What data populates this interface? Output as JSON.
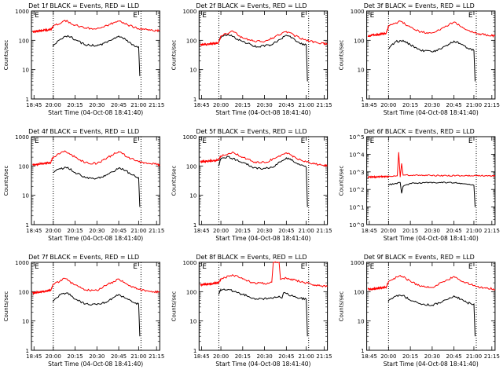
{
  "colors": {
    "events": "#000000",
    "lld": "#ff0000",
    "axes": "#000000",
    "background": "#ffffff"
  },
  "x_tick_labels": [
    "18:45",
    "20:00",
    "20:15",
    "20:30",
    "20:45",
    "21:00",
    "21:15"
  ],
  "xlabel": "Start Time (04-Oct-08 18:41:40)",
  "ylabel": "Counts/sec",
  "marker_label": "E",
  "chart_data": [
    {
      "type": "line",
      "title": "Det 1f BLACK = Events, RED = LLD",
      "ylabel": "Counts/sec",
      "xlabel": "Start Time (04-Oct-08 18:41:40)",
      "y_scale": "log",
      "ylim": [
        1,
        1000
      ],
      "y_tick_labels": [
        "1",
        "10",
        "100",
        "1000"
      ],
      "x_tick_labels": [
        "18:45",
        "20:00",
        "20:15",
        "20:30",
        "20:45",
        "21:00",
        "21:15"
      ],
      "vlines": [
        "20:00",
        "21:02"
      ],
      "series": [
        {
          "name": "Events",
          "color": "#000000",
          "x": [
            "19:59",
            "20:05",
            "20:10",
            "20:15",
            "20:22",
            "20:30",
            "20:37",
            "20:45",
            "20:50",
            "20:55",
            "21:00",
            "21:01"
          ],
          "values": [
            60,
            110,
            145,
            105,
            70,
            65,
            85,
            140,
            110,
            70,
            60,
            6
          ]
        },
        {
          "name": "LLD",
          "color": "#ff0000",
          "x": [
            "18:40",
            "19:50",
            "20:00",
            "20:08",
            "20:15",
            "20:22",
            "20:30",
            "20:37",
            "20:45",
            "20:52",
            "21:00",
            "21:10",
            "21:20"
          ],
          "values": [
            200,
            230,
            300,
            480,
            330,
            260,
            250,
            320,
            450,
            330,
            250,
            220,
            210
          ]
        }
      ]
    },
    {
      "type": "line",
      "title": "Det 2f BLACK = Events, RED = LLD",
      "ylabel": "Counts/sec",
      "xlabel": "Start Time (04-Oct-08 18:41:40)",
      "y_scale": "log",
      "ylim": [
        1,
        1000
      ],
      "y_tick_labels": [
        "1",
        "10",
        "100",
        "1000"
      ],
      "x_tick_labels": [
        "18:45",
        "20:00",
        "20:15",
        "20:30",
        "20:45",
        "21:00",
        "21:15"
      ],
      "vlines": [
        "19:52",
        "21:02"
      ],
      "series": [
        {
          "name": "Events",
          "color": "#000000",
          "x": [
            "19:51",
            "19:58",
            "20:05",
            "20:15",
            "20:25",
            "20:35",
            "20:45",
            "20:50",
            "20:55",
            "21:00",
            "21:01"
          ],
          "values": [
            90,
            120,
            160,
            90,
            60,
            70,
            150,
            120,
            80,
            70,
            4
          ]
        },
        {
          "name": "LLD",
          "color": "#ff0000",
          "x": [
            "18:40",
            "19:50",
            "20:00",
            "20:08",
            "20:15",
            "20:22",
            "20:30",
            "20:37",
            "20:45",
            "20:52",
            "21:00",
            "21:10",
            "21:20"
          ],
          "values": [
            70,
            80,
            140,
            210,
            120,
            95,
            90,
            130,
            200,
            140,
            100,
            80,
            75
          ]
        }
      ]
    },
    {
      "type": "line",
      "title": "Det 3f BLACK = Events, RED = LLD",
      "ylabel": "Counts/sec",
      "xlabel": "Start Time (04-Oct-08 18:41:40)",
      "y_scale": "log",
      "ylim": [
        1,
        1000
      ],
      "y_tick_labels": [
        "1",
        "10",
        "100",
        "1000"
      ],
      "x_tick_labels": [
        "18:45",
        "20:00",
        "20:15",
        "20:30",
        "20:45",
        "21:00",
        "21:15"
      ],
      "vlines": [
        "20:00",
        "21:02"
      ],
      "series": [
        {
          "name": "Events",
          "color": "#000000",
          "x": [
            "19:59",
            "20:05",
            "20:10",
            "20:15",
            "20:22",
            "20:30",
            "20:37",
            "20:45",
            "20:50",
            "20:55",
            "21:00",
            "21:01"
          ],
          "values": [
            50,
            90,
            100,
            70,
            45,
            40,
            55,
            95,
            75,
            55,
            45,
            4
          ]
        },
        {
          "name": "LLD",
          "color": "#ff0000",
          "x": [
            "18:40",
            "19:50",
            "20:00",
            "20:08",
            "20:15",
            "20:22",
            "20:30",
            "20:37",
            "20:45",
            "20:52",
            "21:00",
            "21:10",
            "21:20"
          ],
          "values": [
            140,
            170,
            300,
            450,
            280,
            190,
            180,
            260,
            420,
            260,
            180,
            150,
            140
          ]
        }
      ]
    },
    {
      "type": "line",
      "title": "Det 4f BLACK = Events, RED = LLD",
      "ylabel": "Counts/sec",
      "xlabel": "Start Time (04-Oct-08 18:41:40)",
      "y_scale": "log",
      "ylim": [
        1,
        1000
      ],
      "y_tick_labels": [
        "1",
        "10",
        "100",
        "1000"
      ],
      "x_tick_labels": [
        "18:45",
        "20:00",
        "20:15",
        "20:30",
        "20:45",
        "21:00",
        "21:15"
      ],
      "vlines": [
        "20:00",
        "21:02"
      ],
      "series": [
        {
          "name": "Events",
          "color": "#000000",
          "x": [
            "19:59",
            "20:05",
            "20:10",
            "20:15",
            "20:22",
            "20:30",
            "20:37",
            "20:45",
            "20:50",
            "20:55",
            "21:00",
            "21:01"
          ],
          "values": [
            60,
            80,
            90,
            60,
            40,
            38,
            50,
            85,
            70,
            50,
            40,
            4
          ]
        },
        {
          "name": "LLD",
          "color": "#ff0000",
          "x": [
            "18:40",
            "19:50",
            "20:00",
            "20:08",
            "20:15",
            "20:22",
            "20:30",
            "20:37",
            "20:45",
            "20:52",
            "21:00",
            "21:10",
            "21:20"
          ],
          "values": [
            110,
            130,
            200,
            330,
            200,
            130,
            120,
            190,
            310,
            200,
            140,
            120,
            110
          ]
        }
      ]
    },
    {
      "type": "line",
      "title": "Det 5f BLACK = Events, RED = LLD",
      "ylabel": "Counts/sec",
      "xlabel": "Start Time (04-Oct-08 18:41:40)",
      "y_scale": "log",
      "ylim": [
        1,
        1000
      ],
      "y_tick_labels": [
        "1",
        "10",
        "100",
        "1000"
      ],
      "x_tick_labels": [
        "18:45",
        "20:00",
        "20:15",
        "20:30",
        "20:45",
        "21:00",
        "21:15"
      ],
      "vlines": [
        "19:52",
        "21:02"
      ],
      "series": [
        {
          "name": "Events",
          "color": "#000000",
          "x": [
            "19:51",
            "19:58",
            "20:05",
            "20:15",
            "20:25",
            "20:35",
            "20:45",
            "20:50",
            "20:55",
            "21:00",
            "21:01"
          ],
          "values": [
            100,
            160,
            210,
            130,
            80,
            90,
            190,
            150,
            110,
            90,
            4
          ]
        },
        {
          "name": "LLD",
          "color": "#ff0000",
          "x": [
            "18:40",
            "19:50",
            "20:00",
            "20:08",
            "20:15",
            "20:22",
            "20:30",
            "20:37",
            "20:45",
            "20:52",
            "21:00",
            "21:10",
            "21:20"
          ],
          "values": [
            140,
            160,
            220,
            300,
            200,
            140,
            130,
            180,
            280,
            190,
            140,
            110,
            100
          ]
        }
      ]
    },
    {
      "type": "line",
      "title": "Det 6f BLACK = Events, RED = LLD",
      "ylabel": "Counts/sec",
      "xlabel": "Start Time (04-Oct-08 18:41:40)",
      "y_scale": "log",
      "ylim": [
        1,
        100000
      ],
      "y_tick_labels": [
        "10^0",
        "10^1",
        "10^2",
        "10^3",
        "10^4",
        "10^5"
      ],
      "x_tick_labels": [
        "18:45",
        "20:00",
        "20:15",
        "20:30",
        "20:45",
        "21:00",
        "21:15"
      ],
      "vlines": [
        "20:00",
        "21:02"
      ],
      "series": [
        {
          "name": "Events",
          "color": "#000000",
          "x": [
            "19:59",
            "20:05",
            "20:08",
            "20:09",
            "20:10",
            "20:15",
            "20:25",
            "20:35",
            "20:45",
            "20:55",
            "21:00",
            "21:01"
          ],
          "values": [
            180,
            220,
            250,
            60,
            150,
            220,
            240,
            250,
            240,
            200,
            170,
            10
          ]
        },
        {
          "name": "LLD",
          "color": "#ff0000",
          "x": [
            "18:40",
            "19:55",
            "20:06",
            "20:07",
            "20:08",
            "20:09",
            "20:10",
            "20:20",
            "20:40",
            "21:00",
            "21:20"
          ],
          "values": [
            500,
            550,
            600,
            13000,
            500,
            3000,
            650,
            650,
            600,
            600,
            580
          ]
        }
      ]
    },
    {
      "type": "line",
      "title": "Det 7f BLACK = Events, RED = LLD",
      "ylabel": "Counts/sec",
      "xlabel": "Start Time (04-Oct-08 18:41:40)",
      "y_scale": "log",
      "ylim": [
        1,
        1000
      ],
      "y_tick_labels": [
        "1",
        "10",
        "100",
        "1000"
      ],
      "x_tick_labels": [
        "18:45",
        "20:00",
        "20:15",
        "20:30",
        "20:45",
        "21:00",
        "21:15"
      ],
      "vlines": [
        "20:00",
        "21:02"
      ],
      "series": [
        {
          "name": "Events",
          "color": "#000000",
          "x": [
            "19:59",
            "20:05",
            "20:10",
            "20:15",
            "20:22",
            "20:30",
            "20:37",
            "20:45",
            "20:50",
            "20:55",
            "21:00",
            "21:01"
          ],
          "values": [
            45,
            80,
            90,
            55,
            38,
            36,
            45,
            80,
            60,
            45,
            38,
            3
          ]
        },
        {
          "name": "LLD",
          "color": "#ff0000",
          "x": [
            "18:40",
            "19:50",
            "20:00",
            "20:08",
            "20:15",
            "20:22",
            "20:30",
            "20:37",
            "20:45",
            "20:52",
            "21:00",
            "21:10",
            "21:20"
          ],
          "values": [
            90,
            110,
            180,
            280,
            170,
            115,
            110,
            170,
            270,
            170,
            120,
            100,
            95
          ]
        }
      ]
    },
    {
      "type": "line",
      "title": "Det 8f BLACK = Events, RED = LLD",
      "ylabel": "Counts/sec",
      "xlabel": "Start Time (04-Oct-08 18:41:40)",
      "y_scale": "log",
      "ylim": [
        1,
        1000
      ],
      "y_tick_labels": [
        "1",
        "10",
        "100",
        "1000"
      ],
      "x_tick_labels": [
        "18:45",
        "20:00",
        "20:15",
        "20:30",
        "20:45",
        "21:00",
        "21:15"
      ],
      "vlines": [
        "19:52",
        "21:02"
      ],
      "series": [
        {
          "name": "Events",
          "color": "#000000",
          "x": [
            "19:51",
            "19:58",
            "20:05",
            "20:15",
            "20:25",
            "20:35",
            "20:40",
            "20:42",
            "20:43",
            "20:50",
            "20:55",
            "21:00",
            "21:01"
          ],
          "values": [
            80,
            110,
            120,
            80,
            55,
            60,
            70,
            60,
            90,
            70,
            60,
            55,
            3
          ]
        },
        {
          "name": "LLD",
          "color": "#ff0000",
          "x": [
            "18:40",
            "19:50",
            "20:00",
            "20:08",
            "20:15",
            "20:22",
            "20:30",
            "20:35",
            "20:36",
            "20:40",
            "20:41",
            "20:45",
            "20:52",
            "21:00",
            "21:10",
            "21:20"
          ],
          "values": [
            170,
            200,
            260,
            380,
            270,
            200,
            190,
            210,
            1000,
            1000,
            260,
            290,
            240,
            200,
            160,
            150
          ]
        }
      ]
    },
    {
      "type": "line",
      "title": "Det 9f BLACK = Events, RED = LLD",
      "ylabel": "Counts/sec",
      "xlabel": "Start Time (04-Oct-08 18:41:40)",
      "y_scale": "log",
      "ylim": [
        1,
        1000
      ],
      "y_tick_labels": [
        "1",
        "10",
        "100",
        "1000"
      ],
      "x_tick_labels": [
        "18:45",
        "20:00",
        "20:15",
        "20:30",
        "20:45",
        "21:00",
        "21:15"
      ],
      "vlines": [
        "20:00",
        "21:02"
      ],
      "series": [
        {
          "name": "Events",
          "color": "#000000",
          "x": [
            "19:59",
            "20:05",
            "20:10",
            "20:15",
            "20:22",
            "20:30",
            "20:37",
            "20:45",
            "20:50",
            "20:55",
            "21:00",
            "21:01"
          ],
          "values": [
            45,
            70,
            75,
            50,
            38,
            35,
            45,
            72,
            55,
            42,
            38,
            3
          ]
        },
        {
          "name": "LLD",
          "color": "#ff0000",
          "x": [
            "18:40",
            "19:50",
            "20:00",
            "20:08",
            "20:15",
            "20:22",
            "20:30",
            "20:37",
            "20:45",
            "20:52",
            "21:00",
            "21:10",
            "21:20"
          ],
          "values": [
            120,
            140,
            220,
            360,
            230,
            150,
            140,
            210,
            330,
            220,
            160,
            130,
            120
          ]
        }
      ]
    }
  ]
}
